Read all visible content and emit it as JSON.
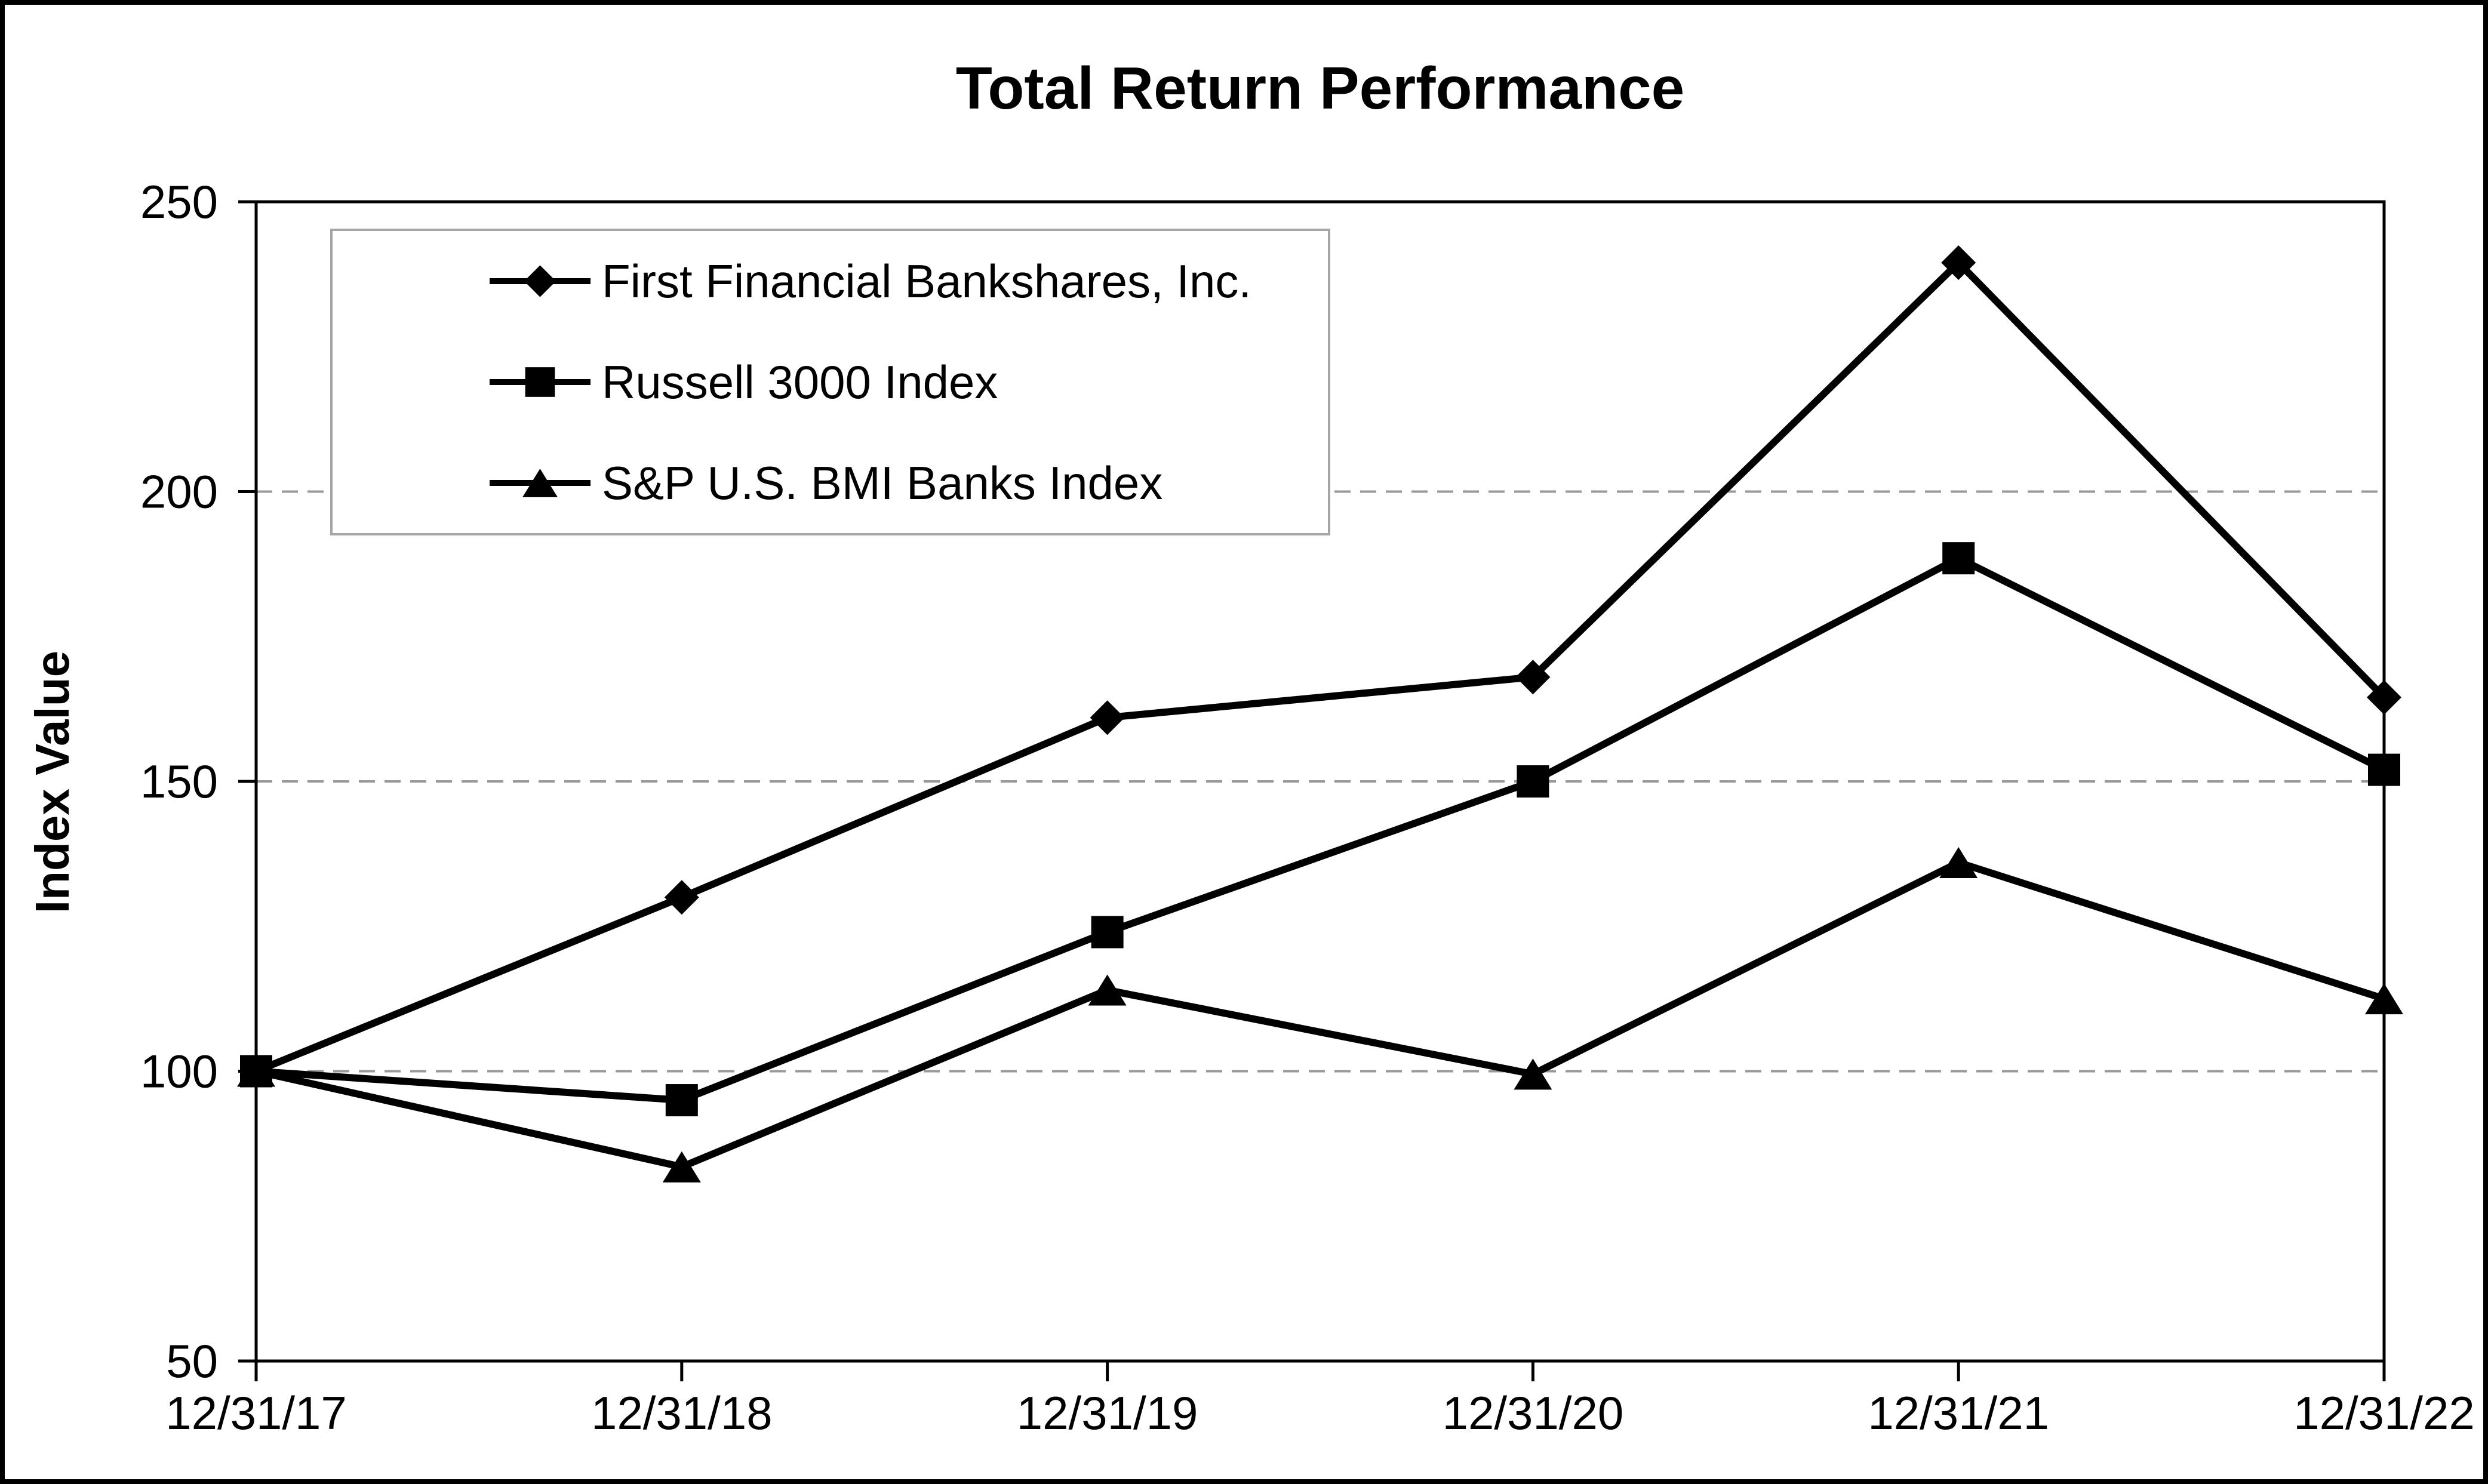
{
  "chart_data": {
    "type": "line",
    "title": "Total Return Performance",
    "xlabel": "",
    "ylabel": "Index Value",
    "categories": [
      "12/31/17",
      "12/31/18",
      "12/31/19",
      "12/31/20",
      "12/31/21",
      "12/31/22"
    ],
    "series": [
      {
        "name": "First Financial Bankshares, Inc.",
        "marker": "diamond",
        "color": "#000000",
        "values": [
          100,
          130,
          161,
          168,
          239.5,
          164.5
        ]
      },
      {
        "name": "Russell 3000 Index",
        "marker": "square",
        "color": "#000000",
        "values": [
          100,
          95,
          124,
          150,
          188.5,
          152
        ]
      },
      {
        "name": "S&P U.S. BMI Banks Index",
        "marker": "triangle",
        "color": "#000000",
        "values": [
          100,
          83.5,
          114,
          99.5,
          136,
          112.5
        ]
      }
    ],
    "ylim": [
      50,
      250
    ],
    "yticks": [
      50,
      100,
      150,
      200,
      250
    ],
    "grid": "horizontal-dashed",
    "legend_position": "top-left-inside"
  },
  "colors": {
    "series": "#000000",
    "gridline": "#999999",
    "axis": "#000000",
    "legend_border": "#a6a6a6",
    "frame_border": "#000000",
    "background": "#ffffff",
    "text": "#000000"
  }
}
